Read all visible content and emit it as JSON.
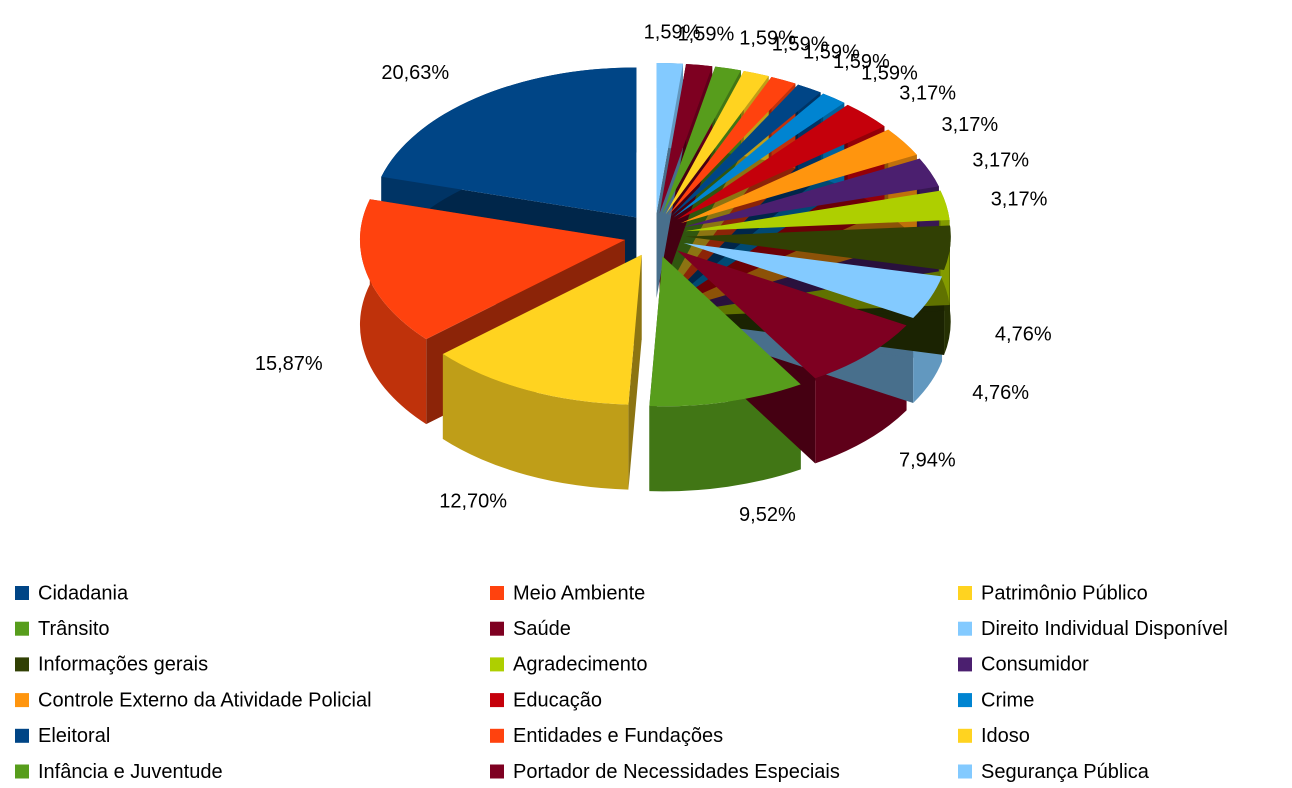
{
  "chart_data": {
    "type": "pie",
    "categories": [
      "Cidadania",
      "Meio Ambiente",
      "Patrimônio Público",
      "Trânsito",
      "Saúde",
      "Direito Individual Disponível",
      "Informações gerais",
      "Agradecimento",
      "Consumidor",
      "Controle Externo da Atividade Policial",
      "Educação",
      "Crime",
      "Eleitoral",
      "Entidades e Fundações",
      "Idoso",
      "Infância e Juventude",
      "Portador de Necessidades Especiais",
      "Segurança Pública"
    ],
    "values": [
      20.63,
      15.87,
      12.7,
      9.52,
      7.94,
      4.76,
      4.76,
      3.17,
      3.17,
      3.17,
      3.17,
      1.59,
      1.59,
      1.59,
      1.59,
      1.59,
      1.59,
      1.59
    ],
    "value_labels": [
      "20,63%",
      "15,87%",
      "12,70%",
      "9,52%",
      "7,94%",
      "4,76%",
      "4,76%",
      "3,17%",
      "3,17%",
      "3,17%",
      "3,17%",
      "1,59%",
      "1,59%",
      "1,59%",
      "1,59%",
      "1,59%",
      "1,59%",
      "1,59%"
    ],
    "colors": [
      "#004586",
      "#ff420e",
      "#ffd320",
      "#579d1c",
      "#7e0021",
      "#83caff",
      "#314004",
      "#aecf00",
      "#4b1f6f",
      "#ff950e",
      "#c5000b",
      "#0084d1",
      "#004586",
      "#ff420e",
      "#ffd320",
      "#579d1c",
      "#7e0021",
      "#83caff"
    ],
    "legend": "bottom"
  }
}
